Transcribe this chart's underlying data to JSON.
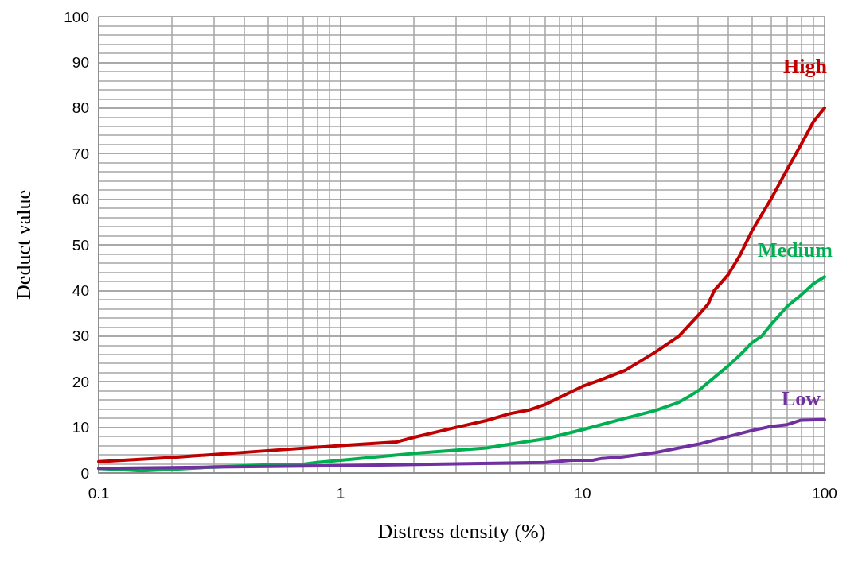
{
  "chart_data": {
    "type": "line",
    "xlabel": "Distress density (%)",
    "ylabel": "Deduct value",
    "log": "x",
    "xlim": [
      0.1,
      100
    ],
    "xticks": [
      0.1,
      1,
      10,
      100
    ],
    "ylim": [
      0,
      100
    ],
    "yticks": [
      0,
      10,
      20,
      30,
      40,
      50,
      60,
      70,
      80,
      90,
      100
    ],
    "grid": true,
    "legend": false,
    "marker": "none",
    "line_style": "solid",
    "series": [
      {
        "name": "High",
        "color": "#c00000",
        "x": [
          0.1,
          0.2,
          0.5,
          1,
          1.7,
          2,
          3,
          4,
          5,
          6,
          7,
          10,
          12,
          15,
          20,
          25,
          30,
          33,
          35,
          40,
          45,
          50,
          60,
          70,
          80,
          90,
          100
        ],
        "values": [
          2.5,
          3.4,
          4.9,
          6,
          6.8,
          7.8,
          10,
          11.5,
          13,
          13.8,
          15,
          19,
          20.5,
          22.5,
          26.5,
          30,
          34.5,
          37,
          40,
          43.5,
          48,
          53,
          60,
          66.5,
          72,
          77,
          80
        ]
      },
      {
        "name": "Medium",
        "color": "#00b050",
        "x": [
          0.1,
          0.15,
          0.2,
          0.3,
          0.5,
          0.7,
          0.8,
          1,
          2,
          4,
          5,
          7,
          10,
          15,
          20,
          25,
          28,
          30,
          40,
          45,
          50,
          55,
          60,
          70,
          80,
          90,
          100
        ],
        "values": [
          1,
          0.5,
          0.8,
          1.3,
          1.8,
          1.9,
          2.3,
          2.8,
          4.3,
          5.5,
          6.3,
          7.5,
          9.5,
          12,
          13.7,
          15.5,
          17,
          18,
          23.5,
          26,
          28.5,
          30,
          32.5,
          36.5,
          39,
          41.5,
          43
        ]
      },
      {
        "name": "Low",
        "color": "#7030a0",
        "x": [
          0.1,
          0.3,
          1,
          3,
          7,
          9,
          11,
          12,
          14,
          20,
          30,
          40,
          50,
          60,
          70,
          80,
          100
        ],
        "values": [
          1,
          1.3,
          1.6,
          2,
          2.3,
          2.8,
          2.8,
          3.2,
          3.4,
          4.5,
          6.3,
          8,
          9.3,
          10.2,
          10.6,
          11.6,
          11.7
        ]
      }
    ]
  }
}
